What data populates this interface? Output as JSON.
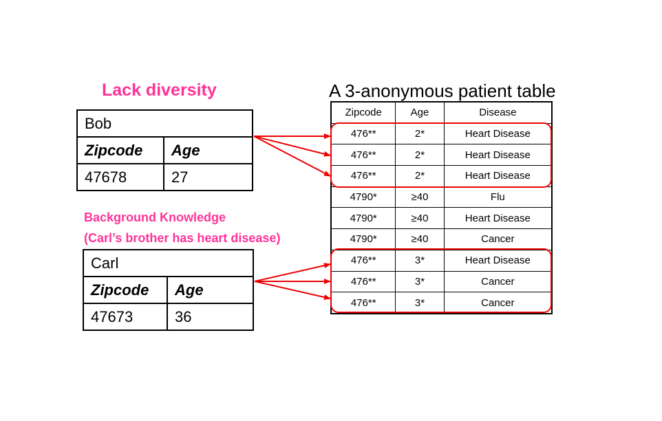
{
  "labels": {
    "lack_diversity": "Lack diversity",
    "background_knowledge_line1": "Background Knowledge",
    "background_knowledge_line2": "(Carl’s brother has heart disease)",
    "patient_table_title": "A 3-anonymous patient table"
  },
  "bob": {
    "name": "Bob",
    "zip_header": "Zipcode",
    "age_header": "Age",
    "zipcode": "47678",
    "age": "27"
  },
  "carl": {
    "name": "Carl",
    "zip_header": "Zipcode",
    "age_header": "Age",
    "zipcode": "47673",
    "age": "36"
  },
  "patient_table": {
    "headers": [
      "Zipcode",
      "Age",
      "Disease"
    ],
    "rows": [
      [
        "476**",
        "2*",
        "Heart Disease"
      ],
      [
        "476**",
        "2*",
        "Heart Disease"
      ],
      [
        "476**",
        "2*",
        "Heart Disease"
      ],
      [
        "4790*",
        "≥40",
        "Flu"
      ],
      [
        "4790*",
        "≥40",
        "Heart Disease"
      ],
      [
        "4790*",
        "≥40",
        "Cancer"
      ],
      [
        "476**",
        "3*",
        "Heart Disease"
      ],
      [
        "476**",
        "3*",
        "Cancer"
      ],
      [
        "476**",
        "3*",
        "Cancer"
      ]
    ]
  },
  "colors": {
    "highlight_text": "#ff3399",
    "arrow": "#ee0000"
  }
}
